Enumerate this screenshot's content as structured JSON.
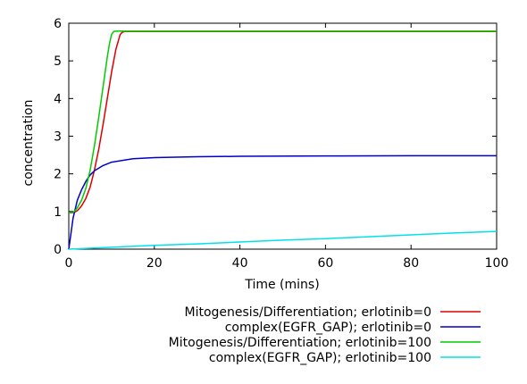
{
  "chart_data": {
    "type": "line",
    "title": "",
    "xlabel": "Time (mins)",
    "ylabel": "concentration",
    "xlim": [
      0,
      100
    ],
    "ylim": [
      0,
      6
    ],
    "x_ticks": [
      0,
      20,
      40,
      60,
      80,
      100
    ],
    "y_ticks": [
      0,
      1,
      2,
      3,
      4,
      5,
      6
    ],
    "grid": false,
    "legend_position": "bottom-right, below plot",
    "series": [
      {
        "name": "Mitogenesis/Differentiation; erlotinib=0",
        "color": "#dd0000",
        "x": [
          0,
          0.5,
          1,
          1.5,
          2,
          3,
          4,
          5,
          6,
          7,
          8,
          9,
          10,
          11,
          12,
          12.5,
          13,
          14,
          100
        ],
        "y": [
          0.97,
          0.97,
          0.97,
          0.99,
          1.02,
          1.15,
          1.35,
          1.65,
          2.1,
          2.65,
          3.3,
          4.0,
          4.7,
          5.3,
          5.7,
          5.76,
          5.78,
          5.78,
          5.78
        ]
      },
      {
        "name": "complex(EGFR_GAP); erlotinib=0",
        "color": "#0000c8",
        "x": [
          0,
          1,
          2,
          3,
          4,
          5,
          6,
          8,
          10,
          15,
          20,
          30,
          40,
          60,
          80,
          100
        ],
        "y": [
          0.0,
          0.82,
          1.3,
          1.58,
          1.8,
          1.97,
          2.08,
          2.22,
          2.31,
          2.4,
          2.43,
          2.455,
          2.465,
          2.475,
          2.48,
          2.48
        ]
      },
      {
        "name": "Mitogenesis/Differentiation; erlotinib=100",
        "color": "#00cc00",
        "x": [
          0,
          0.5,
          1,
          1.5,
          2,
          3,
          4,
          5,
          6,
          7,
          8,
          9,
          9.5,
          10,
          10.5,
          11,
          12,
          100
        ],
        "y": [
          0.97,
          0.97,
          0.98,
          1.02,
          1.1,
          1.3,
          1.62,
          2.1,
          2.75,
          3.5,
          4.3,
          5.1,
          5.45,
          5.7,
          5.78,
          5.79,
          5.79,
          5.79
        ]
      },
      {
        "name": "complex(EGFR_GAP); erlotinib=100",
        "color": "#00e0ee",
        "x": [
          0,
          10,
          20,
          30,
          40,
          50,
          60,
          70,
          80,
          90,
          100
        ],
        "y": [
          0.0,
          0.05,
          0.1,
          0.14,
          0.19,
          0.24,
          0.28,
          0.33,
          0.38,
          0.43,
          0.47
        ]
      }
    ]
  }
}
